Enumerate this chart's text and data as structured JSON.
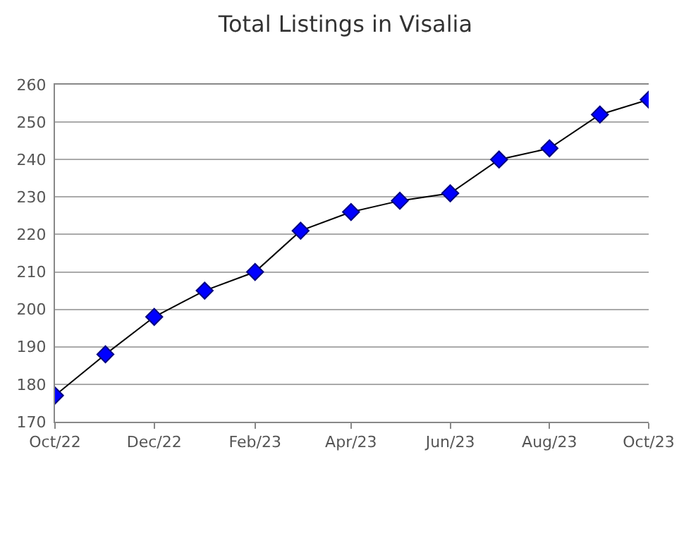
{
  "chart_data": {
    "type": "line",
    "title": "Total Listings in Visalia",
    "x": [
      "2022-10",
      "2022-11",
      "2022-12",
      "2023-01",
      "2023-02",
      "2023-03",
      "2023-04",
      "2023-05",
      "2023-06",
      "2023-07",
      "2023-08",
      "2023-09",
      "2023-10"
    ],
    "series": [
      {
        "color": "#0000ff",
        "values": [
          177,
          188,
          198,
          205,
          210,
          221,
          226,
          229,
          231,
          240,
          243,
          252,
          256
        ]
      }
    ],
    "xlim": [
      "2022-10",
      "2023-10"
    ],
    "xticks": [
      {
        "value": "2022-10",
        "label": "Oct/22"
      },
      {
        "value": "2022-12",
        "label": "Dec/22"
      },
      {
        "value": "2023-02",
        "label": "Feb/23"
      },
      {
        "value": "2023-04",
        "label": "Apr/23"
      },
      {
        "value": "2023-06",
        "label": "Jun/23"
      },
      {
        "value": "2023-08",
        "label": "Aug/23"
      },
      {
        "value": "2023-10",
        "label": "Oct/23"
      }
    ],
    "ylim": [
      170,
      260
    ],
    "yticks": [
      170,
      180,
      190,
      200,
      210,
      220,
      230,
      240,
      250,
      260
    ],
    "grid": "y",
    "marker": "diamond",
    "line_style": "solid"
  }
}
